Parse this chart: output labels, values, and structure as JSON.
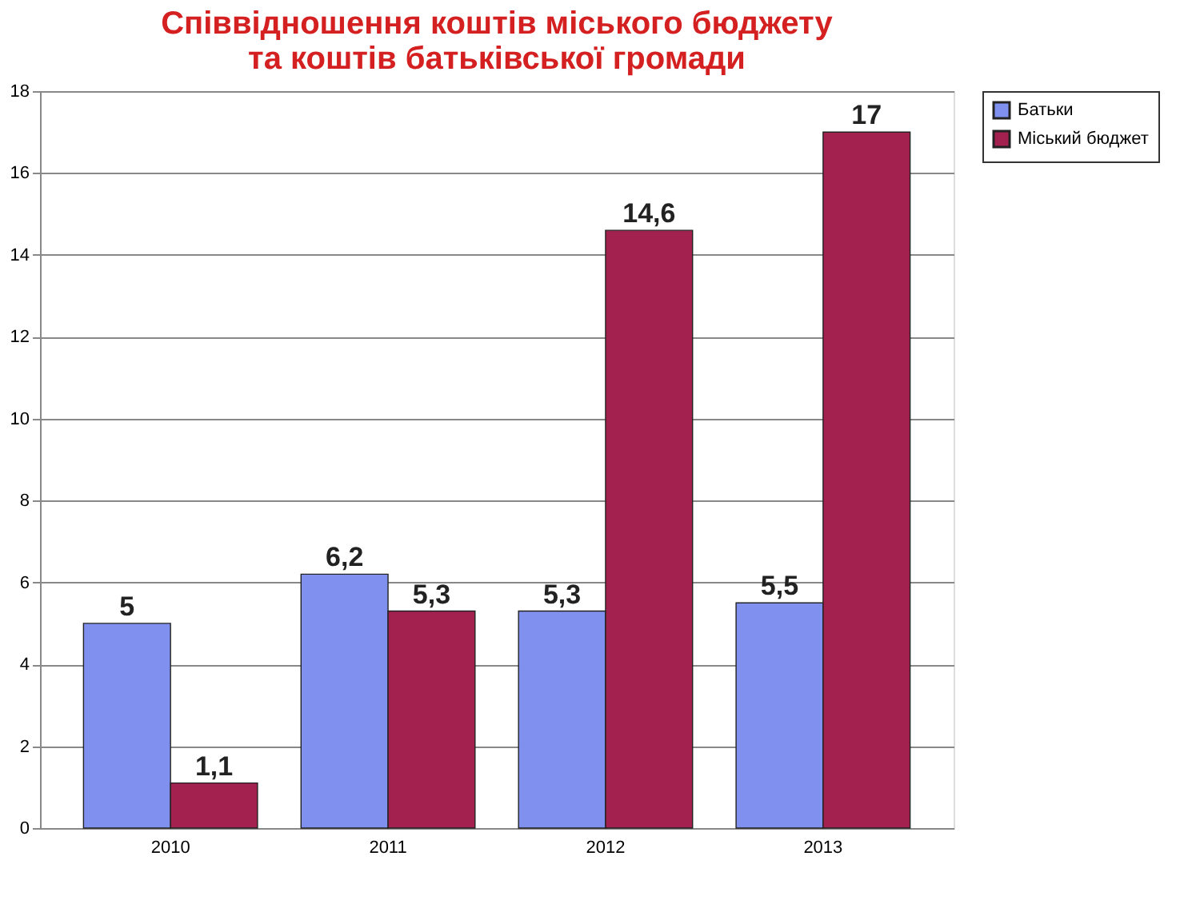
{
  "chart_data": {
    "type": "bar",
    "title": "Співвідношення коштів міського бюджету\nта коштів батьківської громади",
    "categories": [
      "2010",
      "2011",
      "2012",
      "2013"
    ],
    "series": [
      {
        "name": "Батьки",
        "color": "#7f90ee",
        "values": [
          5,
          6.2,
          5.3,
          5.5
        ],
        "value_labels": [
          "5",
          "6,2",
          "5,3",
          "5,5"
        ]
      },
      {
        "name": "Міський бюджет",
        "color": "#a3214f",
        "values": [
          1.1,
          5.3,
          14.6,
          17
        ],
        "value_labels": [
          "1,1",
          "5,3",
          "14,6",
          "17"
        ]
      }
    ],
    "ylim": [
      0,
      18
    ],
    "yticks": [
      0,
      2,
      4,
      6,
      8,
      10,
      12,
      14,
      16,
      18
    ],
    "grid": "y",
    "legend": "right"
  }
}
